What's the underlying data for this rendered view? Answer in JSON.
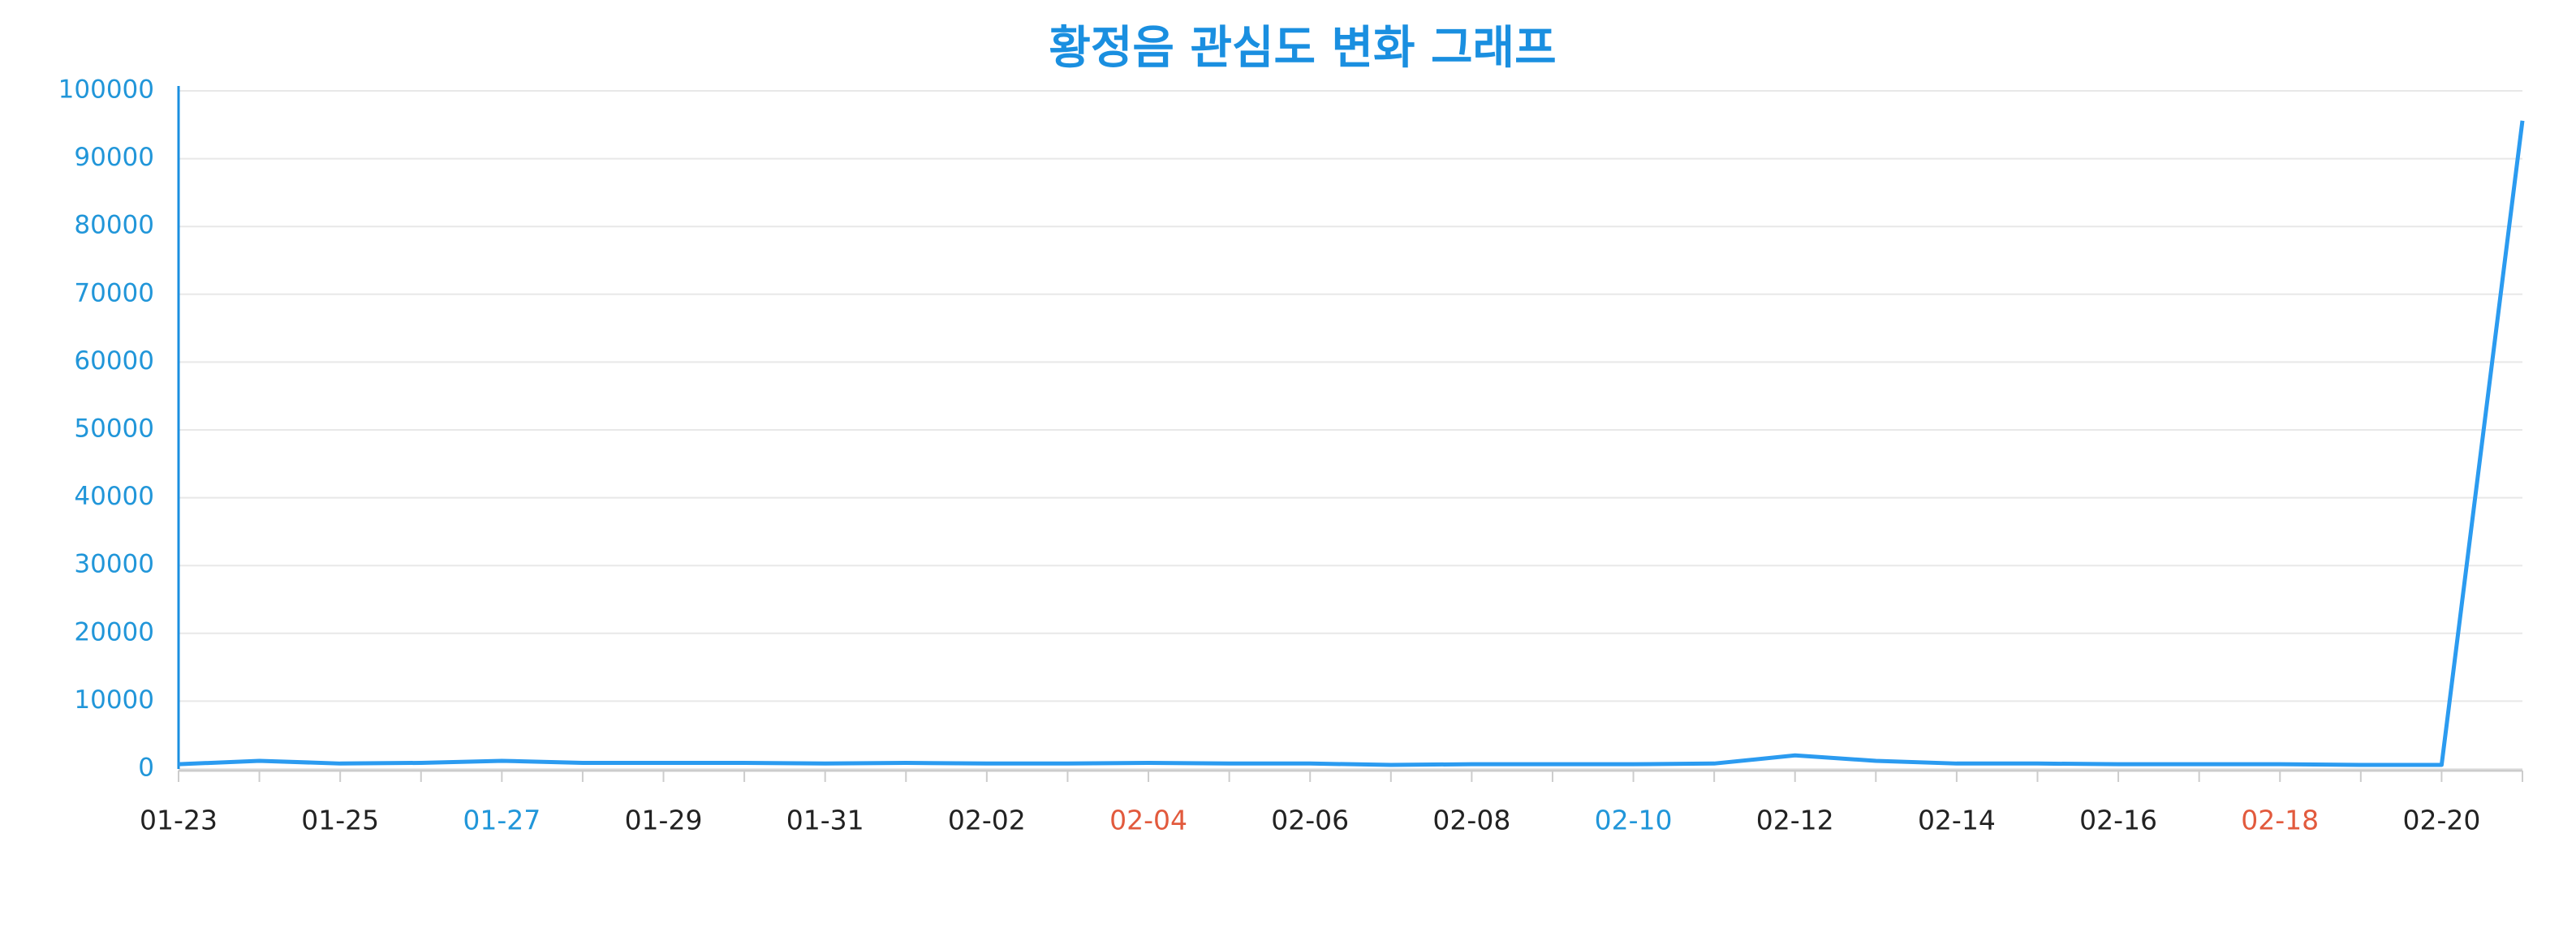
{
  "chart_data": {
    "type": "line",
    "title": "황정음 관심도 변화 그래프",
    "categories": [
      "01-23",
      null,
      "01-25",
      null,
      "01-27",
      null,
      "01-29",
      null,
      "01-31",
      null,
      "02-02",
      null,
      "02-04",
      null,
      "02-06",
      null,
      "02-08",
      null,
      "02-10",
      null,
      "02-12",
      null,
      "02-14",
      null,
      "02-16",
      null,
      "02-18",
      null,
      "02-20",
      null
    ],
    "category_label_colors": [
      "#222222",
      null,
      "#222222",
      null,
      "#2196d9",
      null,
      "#222222",
      null,
      "#222222",
      null,
      "#222222",
      null,
      "#e25a3d",
      null,
      "#222222",
      null,
      "#222222",
      null,
      "#2196d9",
      null,
      "#222222",
      null,
      "#222222",
      null,
      "#222222",
      null,
      "#e25a3d",
      null,
      "#222222",
      null
    ],
    "series": [
      {
        "name": "황정음",
        "color": "#2b9bf0",
        "values": [
          700,
          1200,
          800,
          900,
          1200,
          900,
          900,
          900,
          800,
          900,
          800,
          800,
          900,
          800,
          800,
          600,
          700,
          700,
          700,
          800,
          2000,
          1200,
          800,
          800,
          700,
          700,
          700,
          600,
          600,
          95600
        ]
      }
    ],
    "ylim": [
      0,
      100000
    ],
    "yticks": [
      0,
      10000,
      20000,
      30000,
      40000,
      50000,
      60000,
      70000,
      80000,
      90000,
      100000
    ],
    "grid": true
  }
}
